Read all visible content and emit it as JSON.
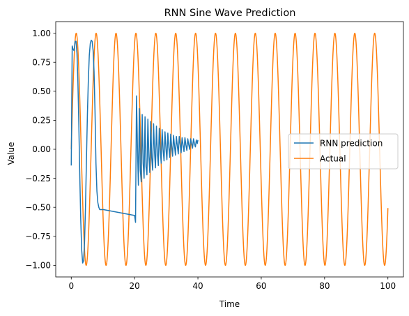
{
  "chart_data": {
    "type": "line",
    "title": "RNN Sine Wave Prediction",
    "xlabel": "Time",
    "ylabel": "Value",
    "xlim": [
      -4.9,
      104.9
    ],
    "ylim": [
      -1.1,
      1.1
    ],
    "xticks": [
      0,
      20,
      40,
      60,
      80,
      100
    ],
    "xtick_labels": [
      "0",
      "20",
      "40",
      "60",
      "80",
      "100"
    ],
    "yticks": [
      -1.0,
      -0.75,
      -0.5,
      -0.25,
      0.0,
      0.25,
      0.5,
      0.75,
      1.0
    ],
    "ytick_labels": [
      "−1.00",
      "−0.75",
      "−0.50",
      "−0.25",
      "0.00",
      "0.25",
      "0.50",
      "0.75",
      "1.00"
    ],
    "grid": false,
    "legend_position": "center-right",
    "series": [
      {
        "name": "RNN prediction",
        "color": "#1f77b4",
        "x": [
          0.0,
          0.3,
          0.6,
          0.9,
          1.2,
          1.5,
          1.8,
          2.1,
          2.4,
          2.7,
          3.0,
          3.3,
          3.6,
          3.9,
          4.2,
          4.5,
          4.8,
          5.1,
          5.4,
          5.7,
          6.0,
          6.3,
          6.6,
          6.9,
          7.2,
          7.5,
          7.8,
          8.1,
          8.4,
          8.7,
          9.0,
          9.3,
          9.6,
          9.9,
          10.2,
          20.0,
          20.3,
          20.6,
          20.9,
          21.2,
          21.5,
          21.8,
          22.1,
          22.4,
          22.7,
          23.0,
          23.3,
          23.6,
          23.9,
          24.2,
          24.5,
          24.8,
          25.1,
          25.4,
          25.7,
          26.0,
          26.3,
          26.6,
          26.9,
          27.2,
          27.5,
          27.8,
          28.1,
          28.4,
          28.7,
          29.0,
          29.3,
          29.6,
          29.9,
          30.2,
          30.5,
          30.8,
          31.1,
          31.4,
          31.7,
          32.0,
          32.3,
          32.6,
          32.9,
          33.2,
          33.5,
          33.8,
          34.1,
          34.4,
          34.7,
          35.0,
          35.3,
          35.6,
          35.9,
          36.2,
          36.5,
          36.8,
          37.1,
          37.4,
          37.7,
          38.0,
          38.3,
          38.6,
          38.9,
          39.2,
          39.5,
          39.8,
          40.0
        ],
        "y": [
          -0.14,
          0.89,
          0.86,
          0.85,
          0.93,
          0.93,
          0.83,
          0.58,
          0.2,
          -0.24,
          -0.61,
          -0.87,
          -0.98,
          -0.96,
          -0.8,
          -0.49,
          -0.09,
          0.3,
          0.6,
          0.81,
          0.91,
          0.94,
          0.93,
          0.85,
          0.67,
          0.33,
          -0.12,
          -0.36,
          -0.46,
          -0.5,
          -0.52,
          -0.52,
          -0.52,
          -0.52,
          -0.52,
          -0.57,
          -0.63,
          0.46,
          0.02,
          -0.31,
          0.35,
          -0.18,
          -0.28,
          0.3,
          -0.12,
          -0.25,
          0.28,
          -0.15,
          -0.22,
          0.26,
          -0.06,
          -0.2,
          0.24,
          -0.07,
          -0.18,
          0.22,
          -0.03,
          -0.16,
          0.2,
          -0.03,
          -0.14,
          0.18,
          0.0,
          -0.12,
          0.17,
          0.0,
          -0.1,
          0.15,
          0.01,
          -0.09,
          0.14,
          0.02,
          -0.07,
          0.13,
          0.03,
          -0.06,
          0.12,
          0.03,
          -0.05,
          0.11,
          0.03,
          -0.04,
          0.11,
          0.04,
          -0.03,
          0.1,
          0.04,
          -0.02,
          0.1,
          0.04,
          -0.01,
          0.09,
          0.04,
          0.0,
          0.09,
          0.05,
          0.01,
          0.09,
          0.05,
          0.02,
          0.08,
          0.05,
          0.08
        ]
      },
      {
        "name": "Actual",
        "color": "#ff7f0e",
        "function": "sin",
        "x_range": [
          0,
          100
        ]
      }
    ]
  }
}
